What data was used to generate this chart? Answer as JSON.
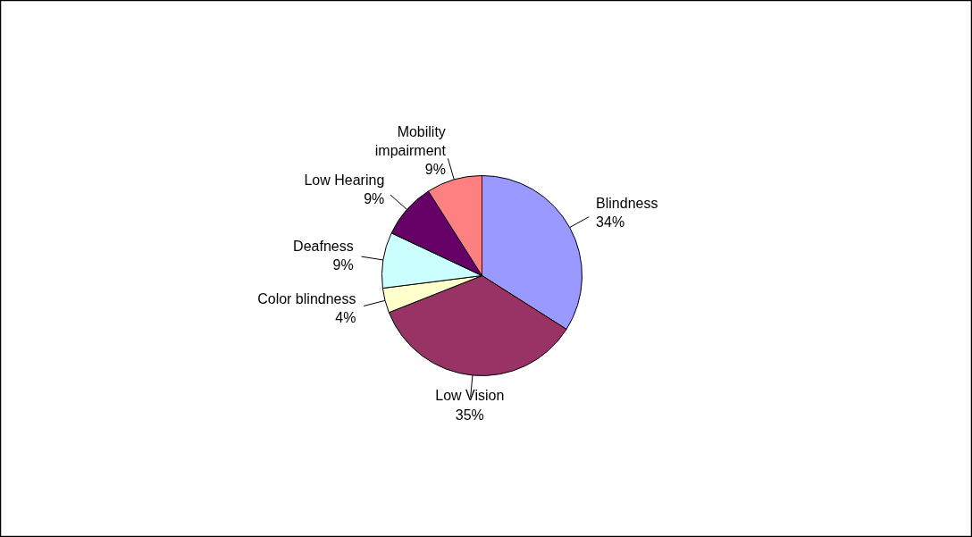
{
  "chart_data": {
    "type": "pie",
    "categories": [
      "Blindness",
      "Low Vision",
      "Color blindness",
      "Deafness",
      "Low Hearing",
      "Mobility impairment"
    ],
    "values": [
      34,
      35,
      4,
      9,
      9,
      9
    ],
    "value_labels": [
      "34%",
      "35%",
      "4%",
      "9%",
      "9%",
      "9%"
    ],
    "colors": [
      "#9999ff",
      "#993366",
      "#ffffcc",
      "#ccffff",
      "#660066",
      "#ff8080"
    ]
  }
}
